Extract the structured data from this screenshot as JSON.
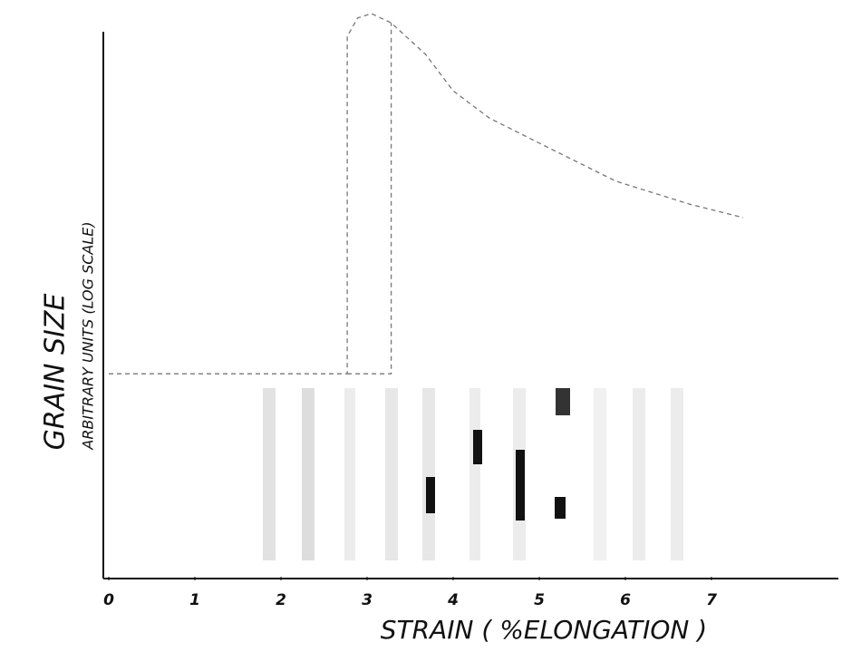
{
  "chart_data": {
    "type": "line",
    "x_label": "STRAIN ( %ELONGATION )",
    "y_label": "GRAIN SIZE",
    "y_sublabel": "ARBITRARY UNITS (LOG SCALE)",
    "xlim": [
      0,
      8.5
    ],
    "xticks": [
      0,
      1,
      2,
      3,
      4,
      5,
      6,
      7
    ],
    "ylim": [
      0,
      10.5
    ],
    "grid": false,
    "series": [
      {
        "color": "#777777",
        "x": [
          0,
          2.77,
          2.77,
          2.89,
          3.05,
          3.28,
          3.68,
          4.0,
          4.42,
          5.05,
          5.89,
          6.74,
          7.37
        ],
        "values": [
          3.73,
          3.73,
          9.93,
          10.27,
          10.35,
          10.18,
          9.6,
          8.93,
          8.43,
          7.93,
          7.27,
          6.85,
          6.6
        ]
      },
      {
        "color": "#777777",
        "x": [
          2.77,
          3.28,
          3.28
        ],
        "values": [
          3.73,
          3.73,
          10.18
        ]
      }
    ]
  }
}
